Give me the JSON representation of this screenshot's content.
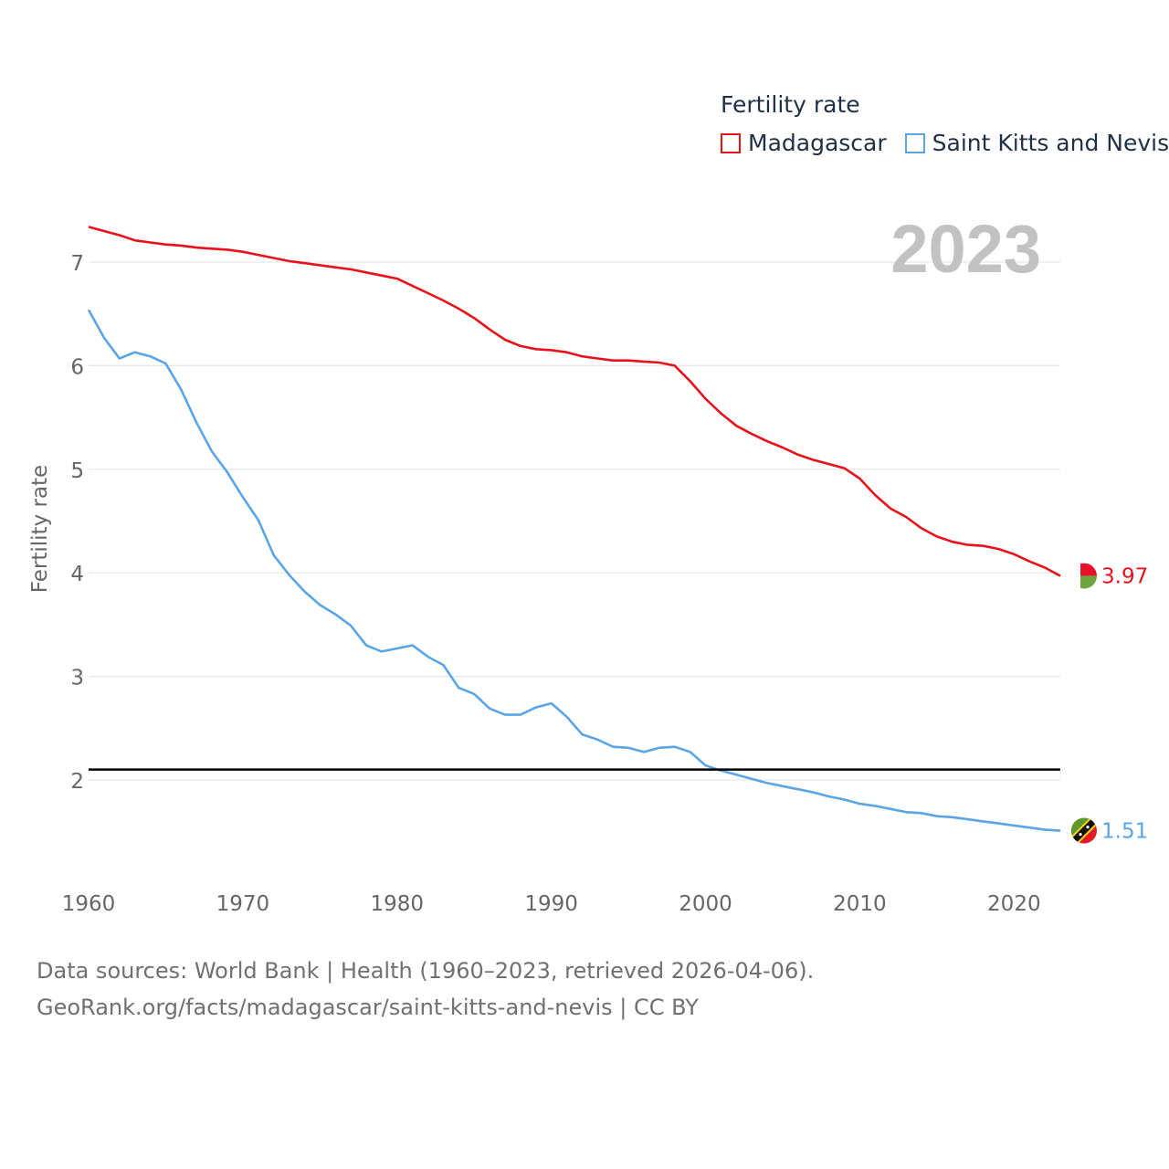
{
  "chart_data": {
    "type": "line",
    "title": "Fertility rate",
    "ylabel": "Fertility rate",
    "xlabel": "",
    "xlim": [
      1960,
      2023
    ],
    "ylim": [
      1.0,
      7.6
    ],
    "yticks": [
      2,
      3,
      4,
      5,
      6,
      7
    ],
    "xticks": [
      1960,
      1970,
      1980,
      1990,
      2000,
      2010,
      2020
    ],
    "year_label": "2023",
    "reference_line": 2.1,
    "legend_placement": "top-right",
    "x": [
      1960,
      1961,
      1962,
      1963,
      1964,
      1965,
      1966,
      1967,
      1968,
      1969,
      1970,
      1971,
      1972,
      1973,
      1974,
      1975,
      1976,
      1977,
      1978,
      1979,
      1980,
      1981,
      1982,
      1983,
      1984,
      1985,
      1986,
      1987,
      1988,
      1989,
      1990,
      1991,
      1992,
      1993,
      1994,
      1995,
      1996,
      1997,
      1998,
      1999,
      2000,
      2001,
      2002,
      2003,
      2004,
      2005,
      2006,
      2007,
      2008,
      2009,
      2010,
      2011,
      2012,
      2013,
      2014,
      2015,
      2016,
      2017,
      2018,
      2019,
      2020,
      2021,
      2022,
      2023
    ],
    "series": [
      {
        "name": "Madagascar",
        "color": "#e8121a",
        "end_label": "3.97",
        "values": [
          7.34,
          7.3,
          7.26,
          7.21,
          7.19,
          7.17,
          7.16,
          7.14,
          7.13,
          7.12,
          7.1,
          7.07,
          7.04,
          7.01,
          6.99,
          6.97,
          6.95,
          6.93,
          6.9,
          6.87,
          6.84,
          6.77,
          6.7,
          6.63,
          6.55,
          6.46,
          6.35,
          6.25,
          6.19,
          6.16,
          6.15,
          6.13,
          6.09,
          6.07,
          6.05,
          6.05,
          6.04,
          6.03,
          6.0,
          5.85,
          5.68,
          5.54,
          5.42,
          5.34,
          5.27,
          5.21,
          5.14,
          5.09,
          5.05,
          5.01,
          4.91,
          4.75,
          4.62,
          4.54,
          4.43,
          4.35,
          4.3,
          4.27,
          4.26,
          4.23,
          4.18,
          4.11,
          4.05,
          3.97
        ]
      },
      {
        "name": "Saint Kitts and Nevis",
        "color": "#5aa5e6",
        "end_label": "1.51",
        "values": [
          6.54,
          6.27,
          6.07,
          6.13,
          6.09,
          6.02,
          5.77,
          5.45,
          5.17,
          4.97,
          4.73,
          4.51,
          4.17,
          3.98,
          3.82,
          3.69,
          3.6,
          3.49,
          3.3,
          3.24,
          3.27,
          3.3,
          3.19,
          3.11,
          2.89,
          2.83,
          2.69,
          2.63,
          2.63,
          2.7,
          2.74,
          2.61,
          2.44,
          2.39,
          2.32,
          2.31,
          2.27,
          2.31,
          2.32,
          2.27,
          2.14,
          2.09,
          2.05,
          2.01,
          1.97,
          1.94,
          1.91,
          1.88,
          1.84,
          1.81,
          1.77,
          1.75,
          1.72,
          1.69,
          1.68,
          1.65,
          1.64,
          1.62,
          1.6,
          1.58,
          1.56,
          1.54,
          1.52,
          1.51
        ]
      }
    ]
  },
  "legend": {
    "title": "Fertility rate",
    "items": [
      "Madagascar",
      "Saint Kitts and Nevis"
    ]
  },
  "source": {
    "line1": "Data sources: World Bank | Health (1960–2023, retrieved 2026-04-06).",
    "line2": "GeoRank.org/facts/madagascar/saint-kitts-and-nevis | CC BY"
  },
  "flags": [
    {
      "country": "Madagascar",
      "icon": "madagascar-flag-icon",
      "colors": [
        "#ffffff",
        "#e8112d",
        "#6ba33c"
      ]
    },
    {
      "country": "Saint Kitts and Nevis",
      "icon": "saint-kitts-and-nevis-flag-icon",
      "colors": [
        "#5a9a2e",
        "#e31b23",
        "#fcd116",
        "#111111"
      ]
    }
  ]
}
